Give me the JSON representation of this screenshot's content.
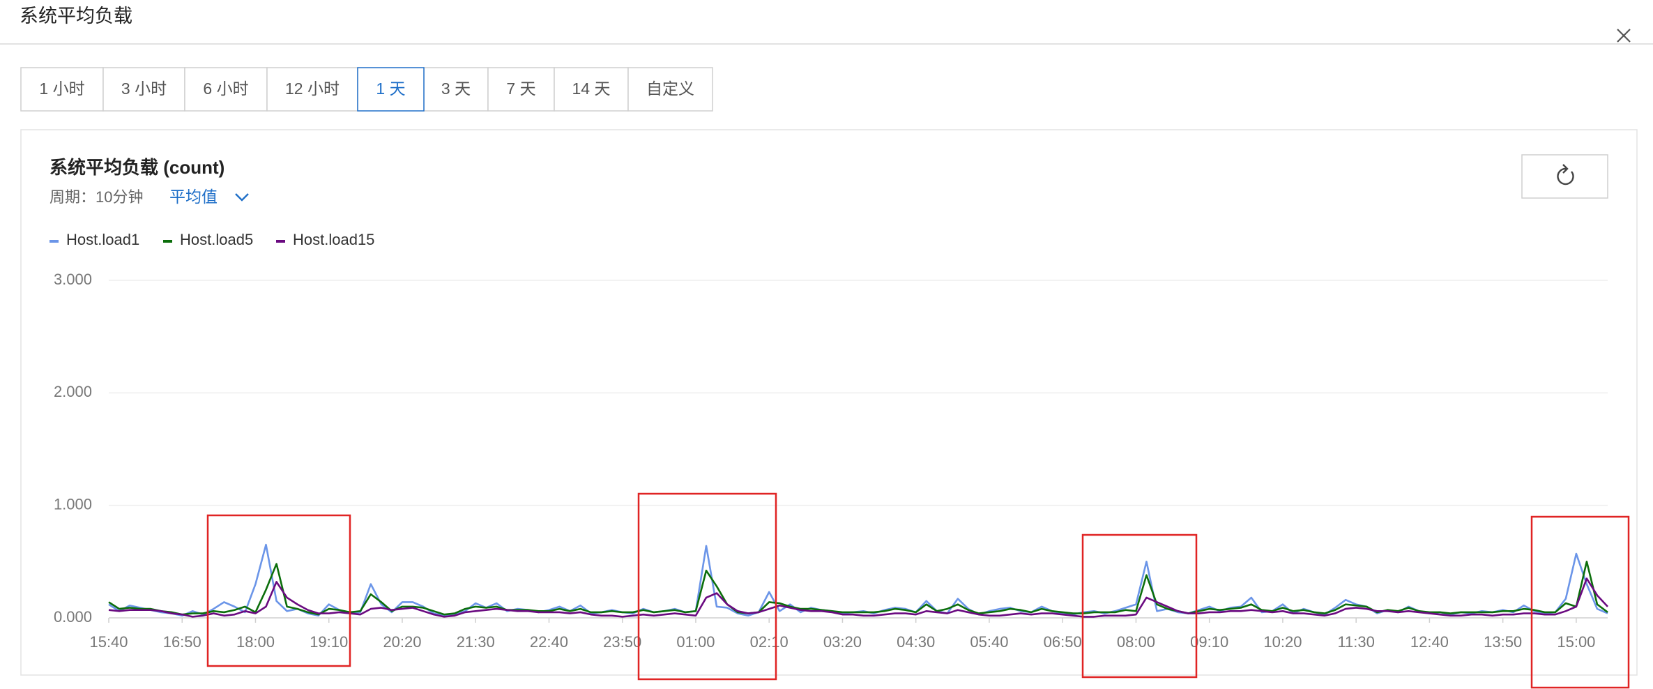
{
  "header": {
    "title": "系统平均负载"
  },
  "tabs": [
    {
      "label": "1 小时"
    },
    {
      "label": "3 小时"
    },
    {
      "label": "6 小时"
    },
    {
      "label": "12 小时"
    },
    {
      "label": "1 天",
      "selected": true
    },
    {
      "label": "3 天"
    },
    {
      "label": "7 天"
    },
    {
      "label": "14 天"
    },
    {
      "label": "自定义"
    }
  ],
  "chart_data": {
    "type": "line",
    "title": "系统平均负载 (count)",
    "period": "周期：10分钟",
    "statistic": "平均值",
    "ylim": [
      0,
      3
    ],
    "yticks": [
      {
        "value": 0,
        "label": "0.000"
      },
      {
        "value": 1,
        "label": "1.000"
      },
      {
        "value": 2,
        "label": "2.000"
      },
      {
        "value": 3,
        "label": "3.000"
      }
    ],
    "grid": true,
    "categories": [
      "15:40",
      null,
      null,
      null,
      null,
      null,
      null,
      "16:50",
      null,
      null,
      null,
      null,
      null,
      null,
      "18:00",
      null,
      null,
      null,
      null,
      null,
      null,
      "19:10",
      null,
      null,
      null,
      null,
      null,
      null,
      "20:20",
      null,
      null,
      null,
      null,
      null,
      null,
      "21:30",
      null,
      null,
      null,
      null,
      null,
      null,
      "22:40",
      null,
      null,
      null,
      null,
      null,
      null,
      "23:50",
      null,
      null,
      null,
      null,
      null,
      null,
      "01:00",
      null,
      null,
      null,
      null,
      null,
      null,
      "02:10",
      null,
      null,
      null,
      null,
      null,
      null,
      "03:20",
      null,
      null,
      null,
      null,
      null,
      null,
      "04:30",
      null,
      null,
      null,
      null,
      null,
      null,
      "05:40",
      null,
      null,
      null,
      null,
      null,
      null,
      "06:50",
      null,
      null,
      null,
      null,
      null,
      null,
      "08:00",
      null,
      null,
      null,
      null,
      null,
      null,
      "09:10",
      null,
      null,
      null,
      null,
      null,
      null,
      "10:20",
      null,
      null,
      null,
      null,
      null,
      null,
      "11:30",
      null,
      null,
      null,
      null,
      null,
      null,
      "12:40",
      null,
      null,
      null,
      null,
      null,
      null,
      "13:50",
      null,
      null,
      null,
      null,
      null,
      null,
      "15:00",
      null,
      null,
      null
    ],
    "series": [
      {
        "name": "Host.load1",
        "color": "#6b95e8",
        "values": [
          0.12,
          0.06,
          0.11,
          0.09,
          0.07,
          0.05,
          0.04,
          0.02,
          0.06,
          0.03,
          0.08,
          0.14,
          0.1,
          0.05,
          0.3,
          0.65,
          0.15,
          0.06,
          0.08,
          0.04,
          0.02,
          0.12,
          0.07,
          0.04,
          0.05,
          0.3,
          0.12,
          0.05,
          0.14,
          0.14,
          0.1,
          0.04,
          0.02,
          0.03,
          0.06,
          0.13,
          0.09,
          0.13,
          0.06,
          0.08,
          0.07,
          0.05,
          0.07,
          0.1,
          0.06,
          0.11,
          0.04,
          0.05,
          0.07,
          0.05,
          0.04,
          0.08,
          0.05,
          0.06,
          0.08,
          0.05,
          0.06,
          0.64,
          0.1,
          0.09,
          0.04,
          0.02,
          0.05,
          0.23,
          0.06,
          0.12,
          0.05,
          0.09,
          0.07,
          0.06,
          0.04,
          0.05,
          0.06,
          0.04,
          0.07,
          0.09,
          0.08,
          0.05,
          0.15,
          0.06,
          0.04,
          0.17,
          0.08,
          0.03,
          0.06,
          0.08,
          0.09,
          0.06,
          0.05,
          0.1,
          0.06,
          0.04,
          0.03,
          0.05,
          0.06,
          0.04,
          0.06,
          0.09,
          0.12,
          0.5,
          0.06,
          0.08,
          0.05,
          0.04,
          0.07,
          0.1,
          0.06,
          0.09,
          0.1,
          0.18,
          0.05,
          0.06,
          0.12,
          0.04,
          0.08,
          0.05,
          0.03,
          0.09,
          0.16,
          0.12,
          0.1,
          0.04,
          0.07,
          0.05,
          0.1,
          0.06,
          0.04,
          0.05,
          0.03,
          0.05,
          0.04,
          0.06,
          0.05,
          0.07,
          0.05,
          0.11,
          0.06,
          0.04,
          0.05,
          0.17,
          0.57,
          0.3,
          0.08,
          0.04
        ]
      },
      {
        "name": "Host.load5",
        "color": "#0b6e0b",
        "values": [
          0.14,
          0.08,
          0.09,
          0.08,
          0.08,
          0.06,
          0.05,
          0.03,
          0.04,
          0.04,
          0.06,
          0.05,
          0.07,
          0.1,
          0.05,
          0.25,
          0.48,
          0.1,
          0.08,
          0.05,
          0.03,
          0.08,
          0.07,
          0.05,
          0.06,
          0.21,
          0.14,
          0.06,
          0.1,
          0.1,
          0.09,
          0.06,
          0.03,
          0.04,
          0.08,
          0.1,
          0.09,
          0.1,
          0.07,
          0.07,
          0.07,
          0.06,
          0.06,
          0.08,
          0.06,
          0.08,
          0.05,
          0.05,
          0.06,
          0.05,
          0.05,
          0.07,
          0.05,
          0.06,
          0.07,
          0.05,
          0.06,
          0.42,
          0.28,
          0.12,
          0.05,
          0.04,
          0.05,
          0.14,
          0.13,
          0.1,
          0.08,
          0.08,
          0.07,
          0.06,
          0.05,
          0.05,
          0.05,
          0.05,
          0.06,
          0.08,
          0.07,
          0.05,
          0.12,
          0.06,
          0.08,
          0.12,
          0.07,
          0.04,
          0.05,
          0.06,
          0.08,
          0.07,
          0.05,
          0.08,
          0.06,
          0.05,
          0.04,
          0.04,
          0.05,
          0.05,
          0.05,
          0.07,
          0.06,
          0.38,
          0.12,
          0.08,
          0.06,
          0.04,
          0.06,
          0.08,
          0.07,
          0.08,
          0.09,
          0.12,
          0.07,
          0.06,
          0.09,
          0.06,
          0.07,
          0.05,
          0.04,
          0.07,
          0.12,
          0.11,
          0.1,
          0.05,
          0.07,
          0.06,
          0.09,
          0.06,
          0.05,
          0.05,
          0.04,
          0.05,
          0.05,
          0.05,
          0.05,
          0.06,
          0.06,
          0.08,
          0.07,
          0.05,
          0.05,
          0.13,
          0.1,
          0.5,
          0.12,
          0.05
        ]
      },
      {
        "name": "Host.load15",
        "color": "#6a0a80",
        "values": [
          0.07,
          0.06,
          0.07,
          0.07,
          0.07,
          0.06,
          0.04,
          0.03,
          0.01,
          0.02,
          0.04,
          0.02,
          0.03,
          0.06,
          0.04,
          0.1,
          0.32,
          0.18,
          0.12,
          0.07,
          0.04,
          0.04,
          0.05,
          0.04,
          0.03,
          0.08,
          0.09,
          0.07,
          0.08,
          0.09,
          0.06,
          0.03,
          0.01,
          0.02,
          0.05,
          0.06,
          0.07,
          0.08,
          0.07,
          0.06,
          0.06,
          0.05,
          0.05,
          0.05,
          0.04,
          0.05,
          0.03,
          0.02,
          0.02,
          0.01,
          0.02,
          0.03,
          0.02,
          0.03,
          0.04,
          0.03,
          0.02,
          0.18,
          0.22,
          0.12,
          0.06,
          0.04,
          0.05,
          0.08,
          0.11,
          0.09,
          0.07,
          0.06,
          0.06,
          0.05,
          0.03,
          0.03,
          0.02,
          0.02,
          0.03,
          0.04,
          0.04,
          0.03,
          0.06,
          0.05,
          0.04,
          0.07,
          0.05,
          0.03,
          0.02,
          0.02,
          0.03,
          0.04,
          0.03,
          0.04,
          0.04,
          0.03,
          0.02,
          0.01,
          0.01,
          0.02,
          0.02,
          0.02,
          0.03,
          0.18,
          0.14,
          0.1,
          0.06,
          0.04,
          0.04,
          0.05,
          0.05,
          0.06,
          0.06,
          0.07,
          0.06,
          0.05,
          0.06,
          0.04,
          0.04,
          0.03,
          0.02,
          0.04,
          0.08,
          0.09,
          0.08,
          0.06,
          0.06,
          0.05,
          0.06,
          0.05,
          0.04,
          0.03,
          0.02,
          0.02,
          0.03,
          0.03,
          0.02,
          0.03,
          0.03,
          0.04,
          0.04,
          0.03,
          0.03,
          0.06,
          0.1,
          0.35,
          0.2,
          0.1
        ]
      }
    ]
  }
}
